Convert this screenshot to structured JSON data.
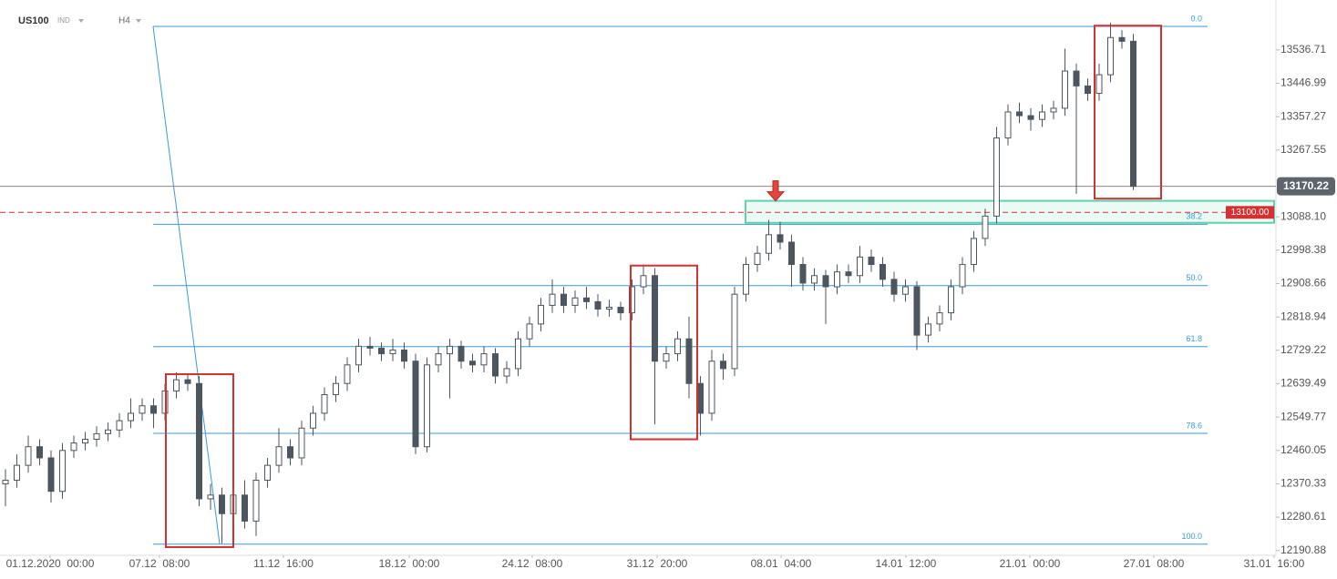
{
  "header": {
    "symbol": "US100",
    "market": "IND",
    "timeframe": "H4"
  },
  "chart_data": {
    "type": "candlestick",
    "up_color": "#ffffff",
    "down_color": "#4d565e",
    "outline_color": "#4d565e",
    "xlim": [
      -0.48,
      111.52
    ],
    "xticks": [
      {
        "value": 3.92,
        "label": "01.12.2020  00:00"
      },
      {
        "value": 13.52,
        "label": "07.12  08:00"
      },
      {
        "value": 24.4,
        "label": "11.12  16:00"
      },
      {
        "value": 35.44,
        "label": "18.12  00:00"
      },
      {
        "value": 46.24,
        "label": "24.12  08:00"
      },
      {
        "value": 57.2,
        "label": "31.12  20:00"
      },
      {
        "value": 68.08,
        "label": "08.01  04:00"
      },
      {
        "value": 79.04,
        "label": "14.01  12:00"
      },
      {
        "value": 89.92,
        "label": "21.01  00:00"
      },
      {
        "value": 100.8,
        "label": "27.01  08:00"
      },
      {
        "value": 111.36,
        "label": "31.01  16:00"
      }
    ],
    "ylim": [
      12178,
      13671
    ],
    "yticks": [
      13536.71,
      13446.99,
      13357.27,
      13267.55,
      {
        "value": 13088.1,
        "label": "13088.10"
      },
      12998.38,
      12908.66,
      12818.94,
      12729.22,
      12639.49,
      12549.77,
      12460.05,
      12370.33,
      12280.61,
      12190.88
    ],
    "open": [
      12370,
      12380,
      12420,
      12470,
      12440,
      12350,
      12460,
      12480,
      12490,
      12505,
      12515,
      12540,
      12560,
      12580,
      12560,
      12620,
      12650,
      12640,
      12330,
      12340,
      12290,
      12340,
      12270,
      12380,
      12420,
      12470,
      12440,
      12520,
      12560,
      12610,
      12640,
      12690,
      12740,
      12735,
      12720,
      12730,
      12700,
      12470,
      12690,
      12720,
      12740,
      12700,
      12690,
      12720,
      12660,
      12680,
      12760,
      12800,
      12850,
      12880,
      12850,
      12870,
      12860,
      12840,
      12845,
      12830,
      12900,
      12930,
      12700,
      12720,
      12760,
      12640,
      12560,
      12700,
      12680,
      12880,
      12960,
      12990,
      13040,
      13020,
      12960,
      12910,
      12930,
      12900,
      12940,
      12930,
      12980,
      12960,
      12920,
      12880,
      12900,
      12770,
      12800,
      12830,
      12900,
      12960,
      13030,
      13090,
      13300,
      13370,
      13360,
      13350,
      13370,
      13380,
      13480,
      13440,
      13420,
      13470,
      13570,
      13560
    ],
    "high": [
      12410,
      12450,
      12500,
      12490,
      12460,
      12480,
      12500,
      12510,
      12525,
      12535,
      12560,
      12600,
      12600,
      12600,
      12640,
      12670,
      12665,
      12660,
      12370,
      12360,
      12440,
      12380,
      12400,
      12440,
      12520,
      12490,
      12540,
      12580,
      12630,
      12660,
      12710,
      12760,
      12765,
      12750,
      12760,
      12750,
      12720,
      12710,
      12740,
      12760,
      12755,
      12720,
      12740,
      12735,
      12700,
      12780,
      12820,
      12870,
      12920,
      12900,
      12890,
      12900,
      12880,
      12865,
      12860,
      12920,
      12960,
      12950,
      12740,
      12780,
      12820,
      12660,
      12730,
      12720,
      12900,
      12980,
      13010,
      13080,
      13075,
      13040,
      12980,
      12950,
      12945,
      12960,
      12960,
      13010,
      13000,
      12980,
      12940,
      12920,
      12915,
      12820,
      12850,
      12920,
      12980,
      13050,
      13110,
      13330,
      13390,
      13395,
      13380,
      13390,
      13400,
      13540,
      13500,
      13460,
      13500,
      13610,
      13590,
      13580
    ],
    "low": [
      12310,
      12360,
      12400,
      12420,
      12320,
      12330,
      12440,
      12460,
      12470,
      12485,
      12495,
      12520,
      12540,
      12520,
      12540,
      12600,
      12620,
      12310,
      12300,
      12210,
      12270,
      12250,
      12230,
      12360,
      12400,
      12420,
      12420,
      12500,
      12540,
      12590,
      12620,
      12670,
      12715,
      12700,
      12700,
      12680,
      12450,
      12455,
      12670,
      12600,
      12680,
      12670,
      12670,
      12640,
      12640,
      12660,
      12740,
      12780,
      12830,
      12830,
      12830,
      12840,
      12820,
      12820,
      12810,
      12810,
      12880,
      12530,
      12680,
      12700,
      12600,
      12500,
      12540,
      12650,
      12660,
      12860,
      12940,
      12970,
      13000,
      12900,
      12890,
      12890,
      12800,
      12880,
      12910,
      12910,
      12940,
      12900,
      12860,
      12860,
      12730,
      12750,
      12780,
      12810,
      12880,
      12940,
      13010,
      13070,
      13280,
      13340,
      13320,
      13330,
      13350,
      13360,
      13150,
      13400,
      13400,
      13450,
      13540,
      13160
    ],
    "close": [
      12380,
      12420,
      12470,
      12440,
      12350,
      12460,
      12480,
      12490,
      12505,
      12515,
      12540,
      12560,
      12580,
      12560,
      12620,
      12650,
      12640,
      12330,
      12340,
      12290,
      12340,
      12270,
      12380,
      12420,
      12470,
      12440,
      12520,
      12560,
      12610,
      12640,
      12690,
      12740,
      12735,
      12720,
      12730,
      12700,
      12470,
      12690,
      12720,
      12740,
      12700,
      12690,
      12720,
      12660,
      12680,
      12760,
      12800,
      12850,
      12880,
      12850,
      12870,
      12860,
      12840,
      12845,
      12830,
      12900,
      12930,
      12700,
      12720,
      12760,
      12640,
      12560,
      12700,
      12680,
      12880,
      12960,
      12990,
      13040,
      13020,
      12960,
      12910,
      12930,
      12900,
      12940,
      12930,
      12980,
      12960,
      12920,
      12880,
      12900,
      12770,
      12800,
      12830,
      12900,
      12960,
      13030,
      13090,
      13300,
      13370,
      13360,
      13350,
      13370,
      13380,
      13480,
      13440,
      13420,
      13470,
      13570,
      13560,
      13170
    ],
    "fib_anchor": {
      "x": [
        12.96,
        18.8
      ],
      "y": [
        13600,
        12208
      ]
    },
    "fib_x_end": 105.52,
    "fib_color": "#3a9ad9",
    "fib_levels": [
      {
        "label": "0.0",
        "price": 13600
      },
      {
        "label": "38.2",
        "price": 13068
      },
      {
        "label": "50.0",
        "price": 12903
      },
      {
        "label": "61.8",
        "price": 12739
      },
      {
        "label": "78.6",
        "price": 12506
      },
      {
        "label": "100.0",
        "price": 12208
      }
    ],
    "current_price": 13170.22,
    "level_line": {
      "value": 13100,
      "label": "13100.00",
      "color": "#d63131"
    },
    "zone": {
      "x": [
        64.96,
        111.36
      ],
      "y": [
        13072,
        13131
      ],
      "color": "#5fd3b0"
    },
    "highlight_boxes": [
      {
        "x": [
          14.08,
          20.0
        ],
        "y": [
          12200,
          12665
        ]
      },
      {
        "x": [
          54.88,
          60.72
        ],
        "y": [
          12490,
          12957
        ]
      },
      {
        "x": [
          95.6,
          101.44
        ],
        "y": [
          13137,
          13602
        ]
      }
    ],
    "box_color": "#d63131",
    "arrow": {
      "x": 67.6,
      "y": 13131,
      "color": "#e0483f"
    }
  }
}
